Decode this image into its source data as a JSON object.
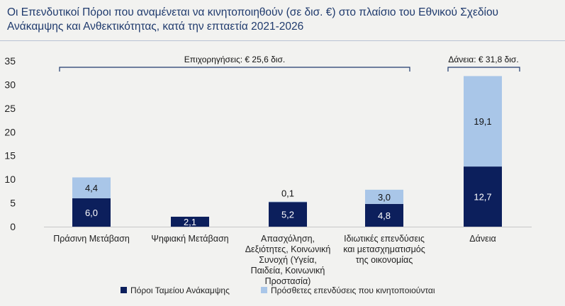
{
  "title_lines": [
    "Οι Επενδυτικοί Πόροι που αναμένεται να κινητοποιηθούν (σε δισ. €) στο πλαίσιο του Εθνικού Σχεδίου",
    "Ανάκαμψης και Ανθεκτικότητας, κατά την επταετία 2021-2026"
  ],
  "colors": {
    "recovery": "#0c1f5c",
    "additional": "#a9c6e8",
    "background": "#f2f2f0"
  },
  "chart_data": {
    "type": "bar",
    "stacked": true,
    "categories": [
      [
        "Πράσινη Μετάβαση"
      ],
      [
        "Ψηφιακή Μετάβαση"
      ],
      [
        "Απασχόληση,",
        "Δεξιότητες, Κοινωνική",
        "Συνοχή (Υγεία,",
        "Παιδεία, Κοινωνική",
        "Προστασία)"
      ],
      [
        "Ιδιωτικές επενδύσεις",
        "και μετασχηματισμός",
        "της οικονομίας"
      ],
      [
        "Δάνεια"
      ]
    ],
    "series": [
      {
        "name": "Πόροι Ταμείου Ανάκαμψης",
        "values": [
          6.0,
          2.1,
          5.2,
          4.8,
          12.7
        ],
        "labels": [
          "6,0",
          "2,1",
          "5,2",
          "4,8",
          "12,7"
        ]
      },
      {
        "name": "Πρόσθετες επενδύσεις που κινητοποιούνται",
        "values": [
          4.4,
          0,
          0.1,
          3.0,
          19.1
        ],
        "labels": [
          "4,4",
          "",
          "0,1",
          "3,0",
          "19,1"
        ]
      }
    ],
    "ylim": [
      0,
      35
    ],
    "yticks": [
      "0",
      "5",
      "10",
      "15",
      "20",
      "25",
      "30",
      "35"
    ],
    "annotations": [
      {
        "text": "Επιχορηγήσεις: € 25,6 δισ.",
        "from": 0,
        "to": 3
      },
      {
        "text": "Δάνεια: € 31,8 δισ.",
        "from": 4,
        "to": 4
      }
    ],
    "legend_position": "bottom"
  }
}
